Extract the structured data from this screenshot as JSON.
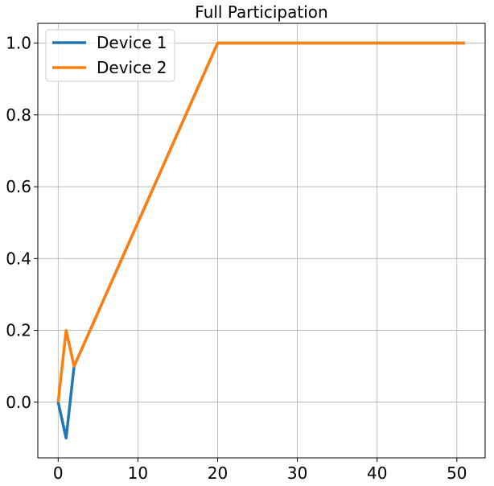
{
  "chart_data": {
    "type": "line",
    "title": "Full Participation",
    "xlabel": "",
    "ylabel": "",
    "xlim": [
      -2.55,
      53.55
    ],
    "ylim": [
      -0.155,
      1.055
    ],
    "xticks": [
      0,
      10,
      20,
      30,
      40,
      50
    ],
    "yticks": [
      0.0,
      0.2,
      0.4,
      0.6,
      0.8,
      1.0
    ],
    "xtick_labels": [
      "0",
      "10",
      "20",
      "30",
      "40",
      "50"
    ],
    "ytick_labels": [
      "0.0",
      "0.2",
      "0.4",
      "0.6",
      "0.8",
      "1.0"
    ],
    "grid": true,
    "legend_position": "top-left",
    "series": [
      {
        "name": "Device 1",
        "color": "#1f77b4",
        "x": [
          0,
          1,
          2,
          20,
          51
        ],
        "y": [
          0.0,
          -0.1,
          0.1,
          1.0,
          1.0
        ]
      },
      {
        "name": "Device 2",
        "color": "#ff7f0e",
        "x": [
          0,
          1,
          2,
          20,
          51
        ],
        "y": [
          0.0,
          0.2,
          0.1,
          1.0,
          1.0
        ]
      }
    ]
  }
}
